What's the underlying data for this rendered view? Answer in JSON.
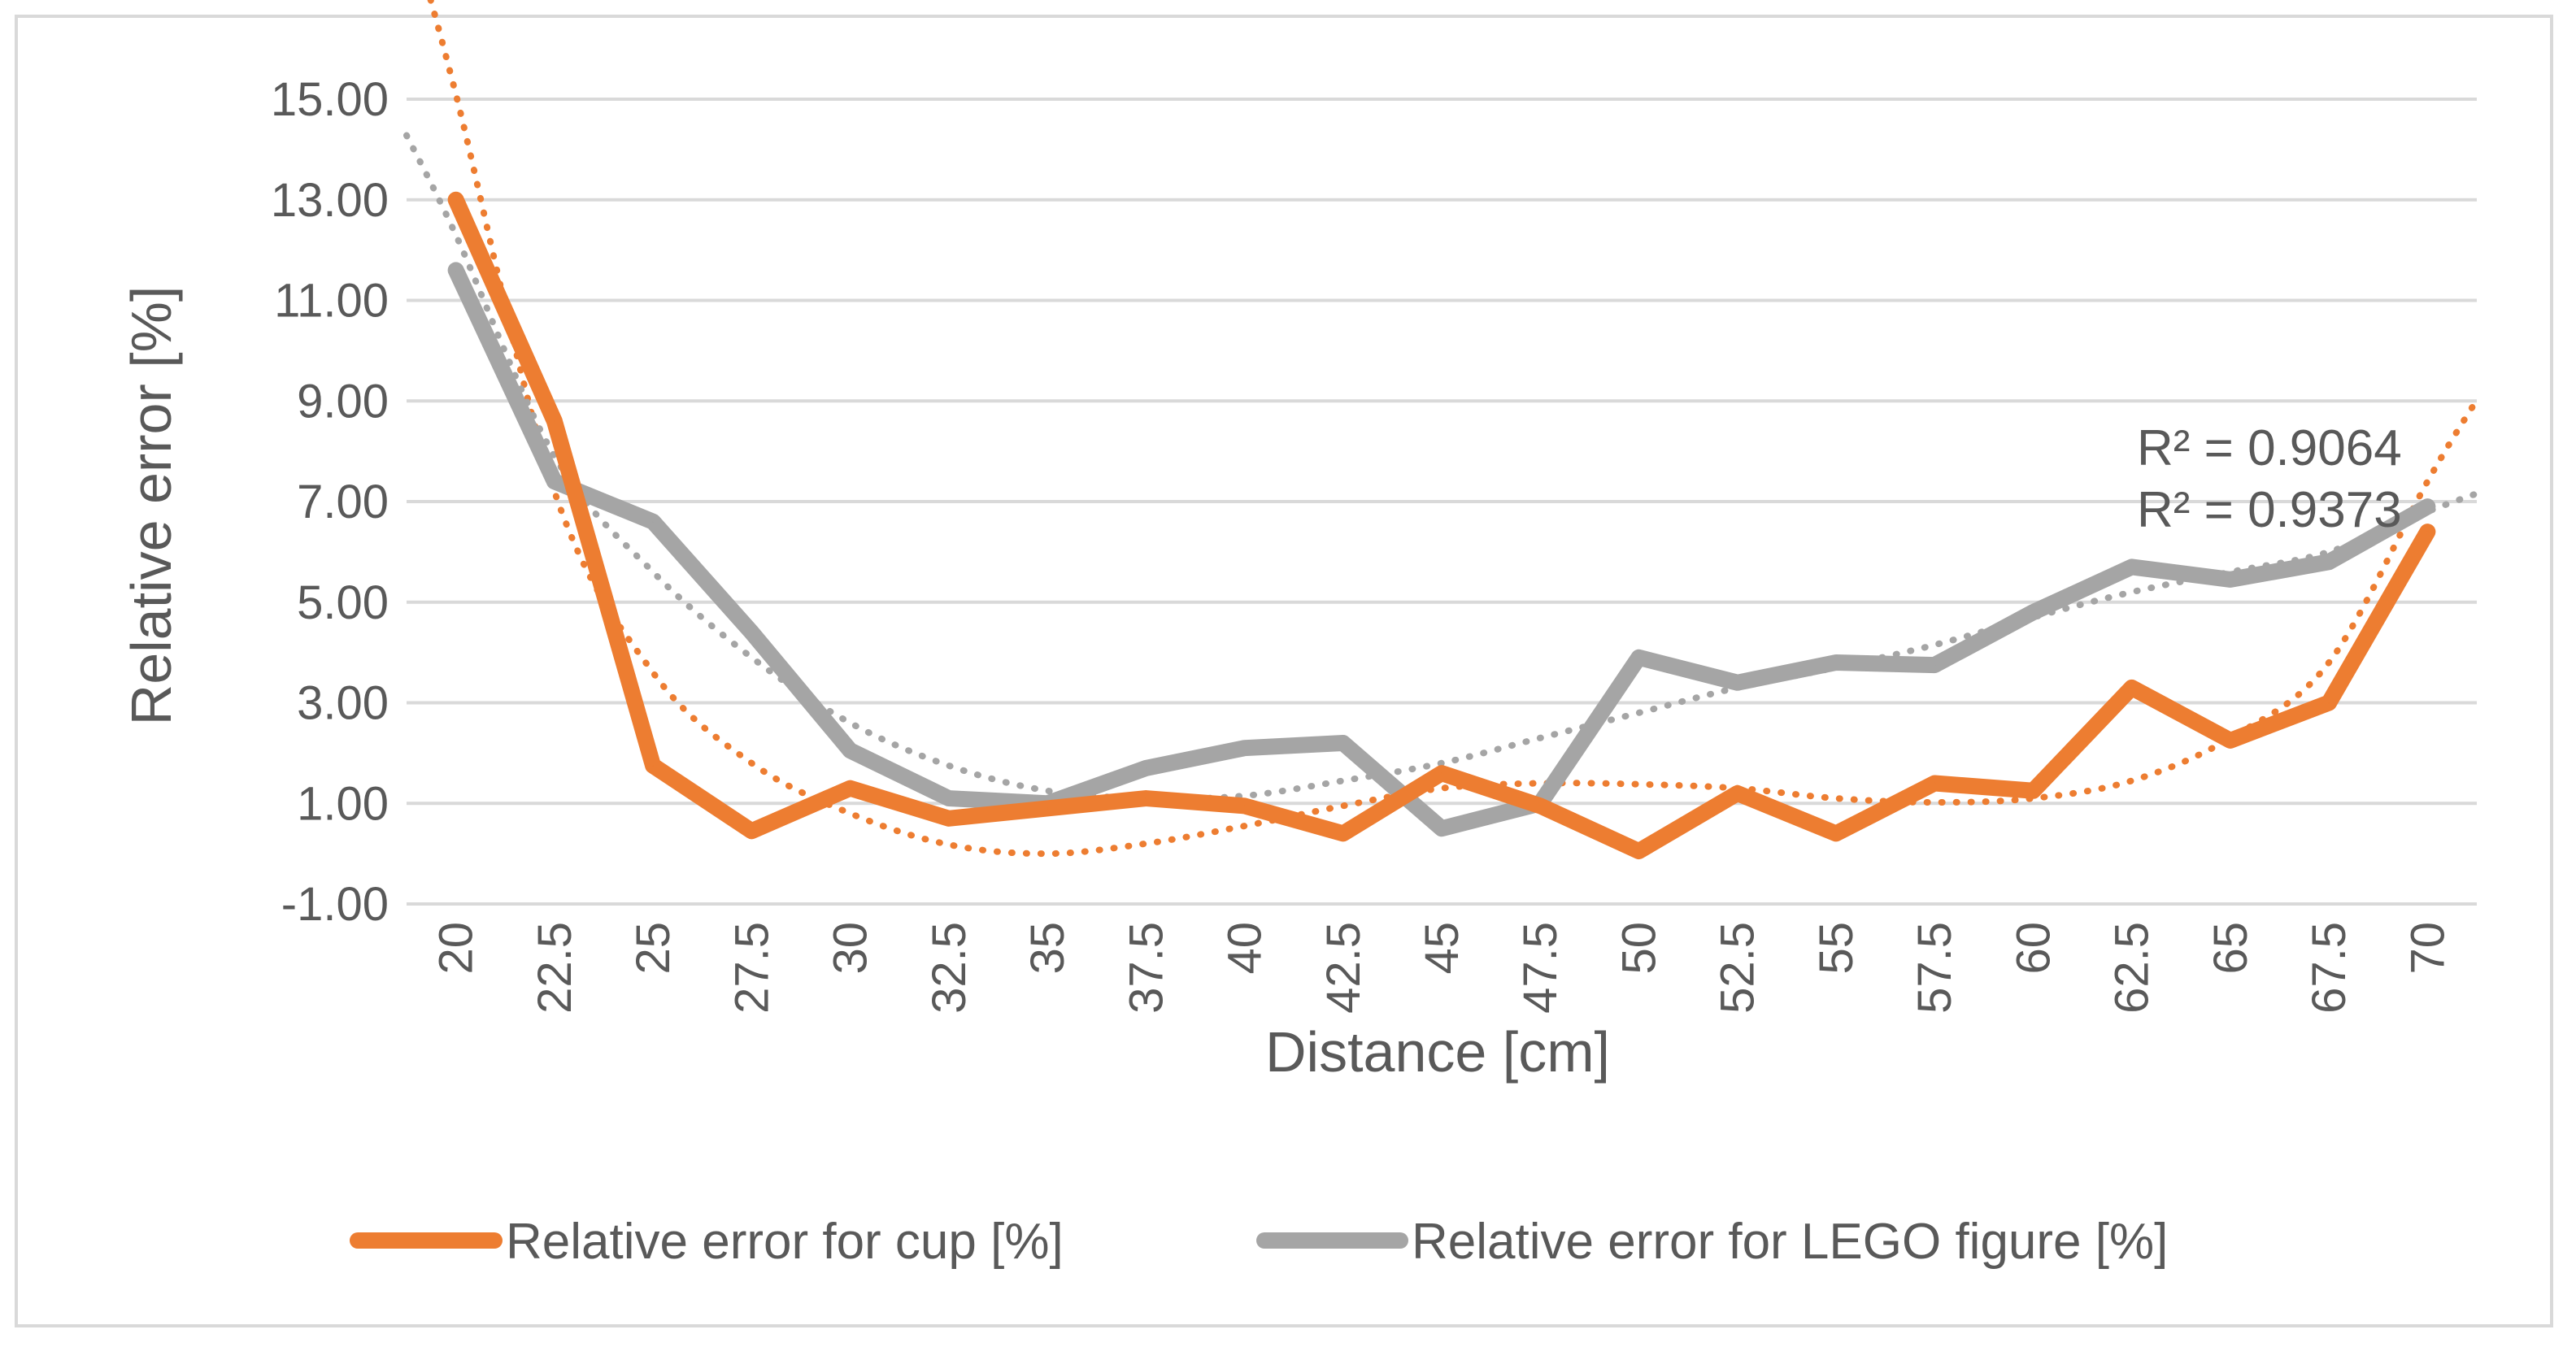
{
  "chart_data": {
    "type": "line",
    "title": "",
    "xlabel": "Distance [cm]",
    "ylabel": "Relative error [%]",
    "ylim": [
      -1,
      15
    ],
    "yticks": [
      "15.00",
      "13.00",
      "11.00",
      "9.00",
      "7.00",
      "5.00",
      "3.00",
      "1.00",
      "-1.00"
    ],
    "ytick_values": [
      15,
      13,
      11,
      9,
      7,
      5,
      3,
      1,
      -1
    ],
    "categories": [
      "20",
      "22.5",
      "25",
      "27.5",
      "30",
      "32.5",
      "35",
      "37.5",
      "40",
      "42.5",
      "45",
      "47.5",
      "50",
      "52.5",
      "55",
      "57.5",
      "60",
      "62.5",
      "65",
      "67.5",
      "70"
    ],
    "grid": true,
    "legend_position": "bottom",
    "series": [
      {
        "name": "Relative error for cup [%]",
        "color": "#ED7D31",
        "values": [
          13.0,
          8.6,
          1.75,
          0.45,
          1.3,
          0.7,
          0.9,
          1.1,
          0.95,
          0.4,
          1.6,
          0.95,
          0.05,
          1.2,
          0.4,
          1.4,
          1.25,
          3.3,
          2.25,
          3.0,
          6.4
        ],
        "trendline_values": [
          15.1,
          7.2,
          3.6,
          1.8,
          0.8,
          0.18,
          0.0,
          0.2,
          0.55,
          0.95,
          1.3,
          1.4,
          1.38,
          1.3,
          1.1,
          1.02,
          1.1,
          1.45,
          2.3,
          3.8,
          7.4
        ],
        "r_squared": "R² = 0.9373"
      },
      {
        "name": "Relative error for LEGO figure [%]",
        "color": "#A5A5A5",
        "values": [
          11.6,
          7.4,
          6.6,
          4.4,
          2.05,
          1.1,
          1.0,
          1.7,
          2.1,
          2.2,
          0.5,
          1.0,
          3.9,
          3.4,
          3.8,
          3.75,
          4.8,
          5.7,
          5.45,
          5.8,
          6.9
        ],
        "trendline_values": [
          12.3,
          7.9,
          5.6,
          3.9,
          2.6,
          1.75,
          1.25,
          1.1,
          1.15,
          1.45,
          1.8,
          2.3,
          2.8,
          3.3,
          3.7,
          4.15,
          4.7,
          5.2,
          5.6,
          6.0,
          6.8
        ],
        "r_squared": "R² = 0.9064"
      }
    ]
  }
}
